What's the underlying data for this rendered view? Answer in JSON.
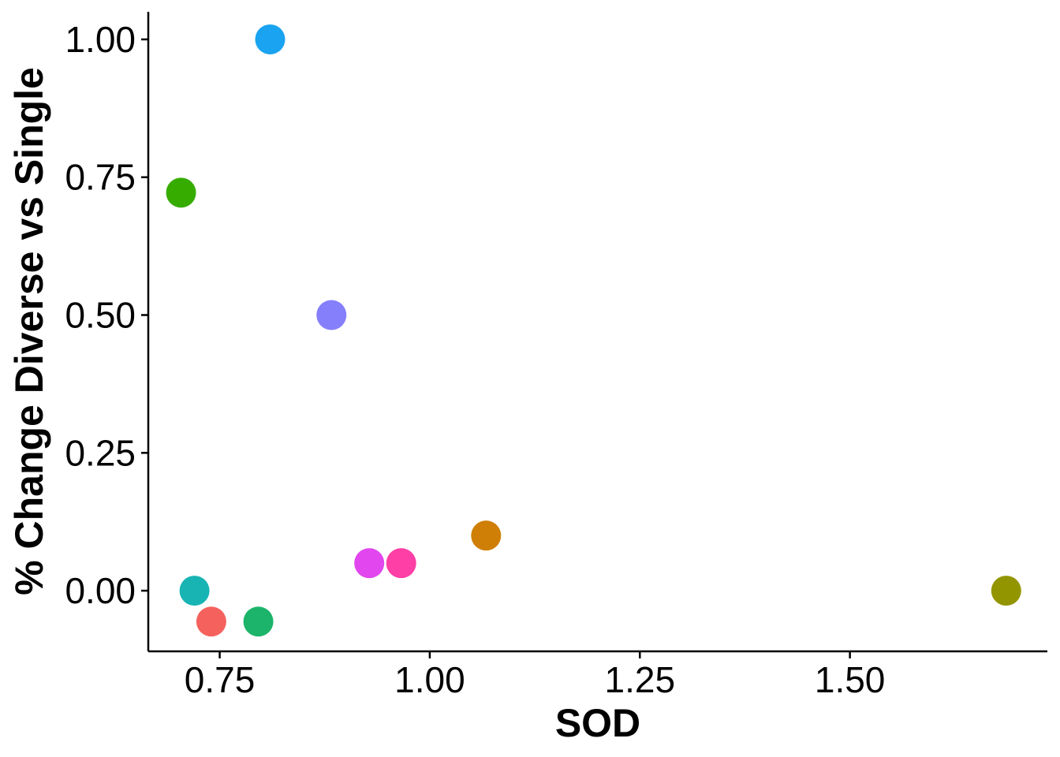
{
  "chart_data": {
    "type": "scatter",
    "title": "",
    "xlabel": "SOD",
    "ylabel": "% Change Diverse vs Single",
    "xlim": [
      0.665,
      1.735
    ],
    "ylim": [
      -0.11,
      1.05
    ],
    "xticks": [
      0.75,
      1.0,
      1.25,
      1.5
    ],
    "xtick_labels": [
      "0.75",
      "1.00",
      "1.25",
      "1.50"
    ],
    "yticks": [
      0.0,
      0.25,
      0.5,
      0.75,
      1.0
    ],
    "ytick_labels": [
      "0.00",
      "0.25",
      "0.50",
      "0.75",
      "1.00"
    ],
    "grid": false,
    "legend": "none",
    "points": [
      {
        "x": 0.81,
        "y": 1.0,
        "color": "#1aa3f0"
      },
      {
        "x": 0.704,
        "y": 0.722,
        "color": "#37ac00"
      },
      {
        "x": 0.883,
        "y": 0.5,
        "color": "#857ffb"
      },
      {
        "x": 1.067,
        "y": 0.1,
        "color": "#cf7f05"
      },
      {
        "x": 0.928,
        "y": 0.05,
        "color": "#e246ee"
      },
      {
        "x": 0.966,
        "y": 0.05,
        "color": "#fd3fa6"
      },
      {
        "x": 0.72,
        "y": 0.0,
        "color": "#18b4b4"
      },
      {
        "x": 1.686,
        "y": 0.0,
        "color": "#939500"
      },
      {
        "x": 0.74,
        "y": -0.056,
        "color": "#f5625e"
      },
      {
        "x": 0.796,
        "y": -0.056,
        "color": "#1bb46a"
      }
    ]
  }
}
